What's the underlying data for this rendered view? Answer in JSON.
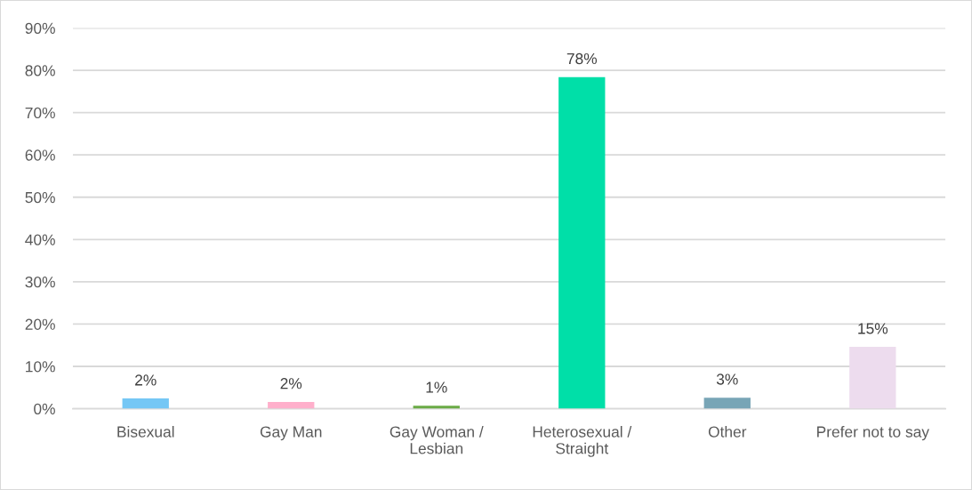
{
  "chart_data": {
    "type": "bar",
    "categories": [
      "Bisexual",
      "Gay Man",
      "Gay Woman /\nLesbian",
      "Heterosexual /\nStraight",
      "Other",
      "Prefer not to say"
    ],
    "values": [
      2.4,
      1.6,
      0.7,
      78.4,
      2.6,
      14.6
    ],
    "colors": [
      "#75c7f5",
      "#ffafcb",
      "#6aab46",
      "#00dfa8",
      "#78a5b6",
      "#eddcee"
    ],
    "value_labels": [
      "2%",
      "2%",
      "1%",
      "78%",
      "3%",
      "15%"
    ],
    "ylim": [
      0,
      90
    ],
    "yticks": [
      {
        "value": 0,
        "label": "0%"
      },
      {
        "value": 10,
        "label": "10%"
      },
      {
        "value": 20,
        "label": "20%"
      },
      {
        "value": 30,
        "label": "30%"
      },
      {
        "value": 40,
        "label": "40%"
      },
      {
        "value": 50,
        "label": "50%"
      },
      {
        "value": 60,
        "label": "60%"
      },
      {
        "value": 70,
        "label": "70%"
      },
      {
        "value": 80,
        "label": "80%"
      },
      {
        "value": 90,
        "label": "90%"
      }
    ],
    "grid": "y"
  }
}
